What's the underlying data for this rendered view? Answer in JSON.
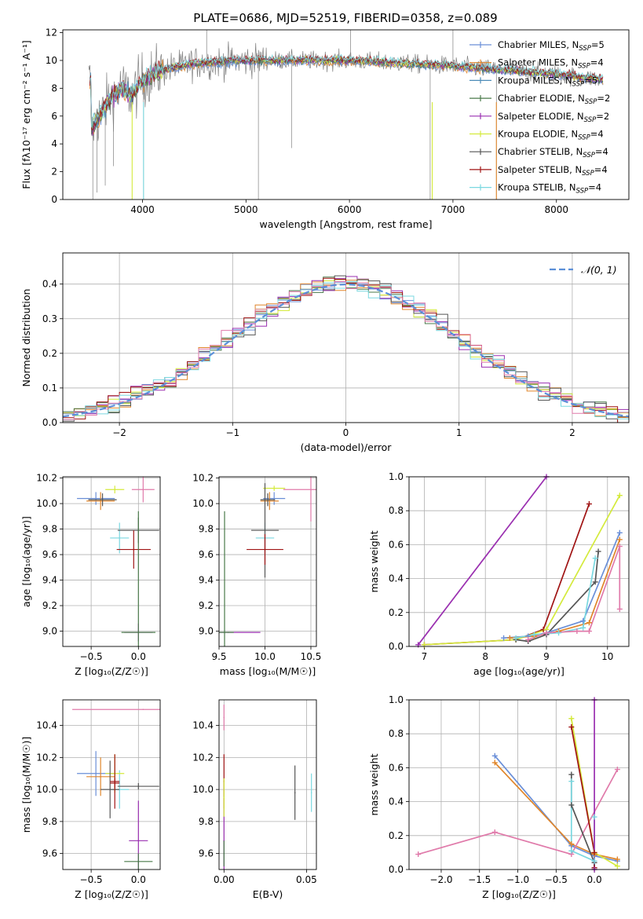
{
  "figure_title": "PLATE=0686, MJD=52519, FIBERID=0358, z=0.089",
  "colors": {
    "chab_miles": "#6a8fd8",
    "salp_miles": "#e0862b",
    "krou_miles": "#4c8cb8",
    "chab_elodie": "#4a7a4a",
    "salp_elodie": "#9a2fb0",
    "krou_elodie": "#d4ea3c",
    "chab_stelib": "#555555",
    "salp_stelib": "#a01414",
    "krou_stelib": "#7ad8e0",
    "pink": "#e07aaa",
    "normal": "#5b8fd8"
  },
  "chart_data": [
    {
      "id": "spectrum",
      "type": "line",
      "title": "PLATE=0686, MJD=52519, FIBERID=0358, z=0.089",
      "xlabel": "wavelength [Angstrom, rest frame]",
      "ylabel": "Flux [fλ10⁻¹⁷ erg cm⁻² s⁻¹ A⁻¹]",
      "xlim": [
        3230,
        8700
      ],
      "ylim": [
        0,
        12.2
      ],
      "xticks": [
        4000,
        5000,
        6000,
        7000,
        8000
      ],
      "yticks": [
        0,
        2,
        4,
        6,
        8,
        10,
        12
      ],
      "grid": false,
      "legend_position": "top-right",
      "legend": [
        {
          "label": "Chabrier MILES, N",
          "sub": "SSP",
          "suffix": "=5",
          "color": "#6a8fd8"
        },
        {
          "label": "Salpeter MILES, N",
          "sub": "SSP",
          "suffix": "=4",
          "color": "#e0862b"
        },
        {
          "label": "Kroupa MILES, N",
          "sub": "SSP",
          "suffix": "=5",
          "color": "#4c8cb8"
        },
        {
          "label": "Chabrier ELODIE, N",
          "sub": "SSP",
          "suffix": "=2",
          "color": "#4a7a4a"
        },
        {
          "label": "Salpeter ELODIE, N",
          "sub": "SSP",
          "suffix": "=2",
          "color": "#9a2fb0"
        },
        {
          "label": "Kroupa ELODIE, N",
          "sub": "SSP",
          "suffix": "=4",
          "color": "#d4ea3c"
        },
        {
          "label": "Chabrier STELIB, N",
          "sub": "SSP",
          "suffix": "=4",
          "color": "#555555"
        },
        {
          "label": "Salpeter STELIB, N",
          "sub": "SSP",
          "suffix": "=4",
          "color": "#a01414"
        },
        {
          "label": "Kroupa STELIB, N",
          "sub": "SSP",
          "suffix": "=4",
          "color": "#7ad8e0"
        }
      ],
      "continuum": [
        {
          "x": 3500,
          "y": 5.0
        },
        {
          "x": 3600,
          "y": 6.2
        },
        {
          "x": 3700,
          "y": 7.4
        },
        {
          "x": 3800,
          "y": 8.0
        },
        {
          "x": 3900,
          "y": 7.5
        },
        {
          "x": 4000,
          "y": 8.6
        },
        {
          "x": 4200,
          "y": 9.3
        },
        {
          "x": 4500,
          "y": 9.8
        },
        {
          "x": 5000,
          "y": 10.0
        },
        {
          "x": 5500,
          "y": 10.0
        },
        {
          "x": 6000,
          "y": 10.0
        },
        {
          "x": 6500,
          "y": 9.8
        },
        {
          "x": 7000,
          "y": 9.6
        },
        {
          "x": 7500,
          "y": 9.3
        },
        {
          "x": 8000,
          "y": 9.0
        },
        {
          "x": 8450,
          "y": 8.6
        }
      ]
    },
    {
      "id": "residuals",
      "type": "histogram",
      "xlabel": "(data-model)/error",
      "ylabel": "Normed distribution",
      "xlim": [
        -2.5,
        2.5
      ],
      "ylim": [
        0,
        0.49
      ],
      "xticks": [
        -2,
        -1,
        0,
        1,
        2
      ],
      "yticks": [
        0.0,
        0.1,
        0.2,
        0.3,
        0.4
      ],
      "grid": true,
      "legend_position": "top-right",
      "legend_label": "𝒩(0, 1)",
      "bin_width": 0.1
    },
    {
      "id": "age_vs_Z",
      "type": "errorbar",
      "xlabel": "Z [log₁₀(Z/Z☉)]",
      "ylabel": "age  [log₁₀(age/yr)]",
      "xlim": [
        -0.8,
        0.23
      ],
      "ylim": [
        8.88,
        10.21
      ],
      "xticks": [
        -0.5,
        0.0
      ],
      "yticks": [
        9.0,
        9.2,
        9.4,
        9.6,
        9.8,
        10.0,
        10.2
      ],
      "grid": true,
      "points": [
        {
          "x": -0.45,
          "y": 10.04,
          "xerr": 0.2,
          "yerr": 0.05,
          "color": "#6a8fd8"
        },
        {
          "x": -0.4,
          "y": 10.02,
          "xerr": 0.15,
          "yerr": 0.07,
          "color": "#e0862b"
        },
        {
          "x": -0.38,
          "y": 10.03,
          "xerr": 0.15,
          "yerr": 0.05,
          "color": "#555555"
        },
        {
          "x": -0.2,
          "y": 9.73,
          "xerr": 0.1,
          "yerr": 0.12,
          "color": "#7ad8e0"
        },
        {
          "x": -0.25,
          "y": 10.11,
          "xerr": 0.1,
          "yerr": 0.03,
          "color": "#d4ea3c"
        },
        {
          "x": 0.05,
          "y": 10.11,
          "xerr": 0.12,
          "yerr": 0.1,
          "color": "#e07aaa"
        },
        {
          "x": 0.0,
          "y": 9.79,
          "xerr": 0.22,
          "yerr": 0.1,
          "color": "#555555"
        },
        {
          "x": -0.05,
          "y": 9.64,
          "xerr": 0.18,
          "yerr": 0.15,
          "color": "#a01414"
        },
        {
          "x": 0.0,
          "y": 8.99,
          "xerr": 0.15,
          "yerr": 0.07,
          "color": "#9a2fb0"
        },
        {
          "x": 0.0,
          "y": 8.99,
          "xerr": 0.18,
          "yerr": 0.95,
          "color": "#4a7a4a"
        }
      ]
    },
    {
      "id": "age_vs_mass",
      "type": "errorbar",
      "xlabel": "mass [log₁₀(M/M☉)]",
      "xlim": [
        9.5,
        10.56
      ],
      "ylim": [
        8.88,
        10.21
      ],
      "xticks": [
        9.5,
        10.0,
        10.5
      ],
      "yticks": [
        9.0,
        9.2,
        9.4,
        9.6,
        9.8,
        10.0,
        10.2
      ],
      "grid": true,
      "points": [
        {
          "x": 10.1,
          "y": 10.04,
          "xerr": 0.12,
          "yerr": 0.05,
          "color": "#6a8fd8"
        },
        {
          "x": 10.05,
          "y": 10.02,
          "xerr": 0.1,
          "yerr": 0.07,
          "color": "#e0862b"
        },
        {
          "x": 10.03,
          "y": 10.03,
          "xerr": 0.08,
          "yerr": 0.05,
          "color": "#555555"
        },
        {
          "x": 10.0,
          "y": 9.73,
          "xerr": 0.1,
          "yerr": 0.12,
          "color": "#7ad8e0"
        },
        {
          "x": 10.1,
          "y": 10.12,
          "xerr": 0.12,
          "yerr": 0.02,
          "color": "#d4ea3c"
        },
        {
          "x": 10.5,
          "y": 10.11,
          "xerr": 0.3,
          "yerr": 0.25,
          "color": "#e07aaa"
        },
        {
          "x": 10.0,
          "y": 9.79,
          "xerr": 0.15,
          "yerr": 0.37,
          "color": "#555555"
        },
        {
          "x": 10.0,
          "y": 9.64,
          "xerr": 0.2,
          "yerr": 0.12,
          "color": "#a01414"
        },
        {
          "x": 9.6,
          "y": 8.99,
          "xerr": 0.35,
          "yerr": 0.0,
          "color": "#9a2fb0"
        },
        {
          "x": 9.56,
          "y": 8.99,
          "xerr": 0.1,
          "yerr": 0.95,
          "color": "#4a7a4a"
        }
      ]
    },
    {
      "id": "weight_vs_age",
      "type": "line",
      "xlabel": "age  [log₁₀(age/yr)]",
      "ylabel": "mass weight",
      "xlim": [
        6.75,
        10.35
      ],
      "ylim": [
        0,
        1.0
      ],
      "xticks": [
        7,
        8,
        9,
        10
      ],
      "yticks": [
        0.0,
        0.2,
        0.4,
        0.6,
        0.8,
        1.0
      ],
      "grid": true,
      "series": [
        {
          "color": "#9a2fb0",
          "x": [
            6.9,
            9.0
          ],
          "y": [
            0.01,
            1.0
          ]
        },
        {
          "color": "#a01414",
          "x": [
            7.0,
            8.5,
            8.95,
            9.7
          ],
          "y": [
            0.01,
            0.04,
            0.1,
            0.84
          ]
        },
        {
          "color": "#d4ea3c",
          "x": [
            7.0,
            8.5,
            9.0,
            10.2
          ],
          "y": [
            0.01,
            0.04,
            0.1,
            0.89
          ]
        },
        {
          "color": "#555555",
          "x": [
            8.5,
            8.7,
            9.0,
            9.8,
            9.85
          ],
          "y": [
            0.04,
            0.03,
            0.07,
            0.38,
            0.56
          ]
        },
        {
          "color": "#6a8fd8",
          "x": [
            8.3,
            8.7,
            9.0,
            9.6,
            10.2
          ],
          "y": [
            0.05,
            0.06,
            0.08,
            0.15,
            0.67
          ]
        },
        {
          "color": "#e0862b",
          "x": [
            8.4,
            8.8,
            9.2,
            9.7,
            10.2
          ],
          "y": [
            0.05,
            0.06,
            0.09,
            0.14,
            0.63
          ]
        },
        {
          "color": "#7ad8e0",
          "x": [
            8.5,
            8.8,
            9.2,
            9.6,
            9.8
          ],
          "y": [
            0.05,
            0.07,
            0.08,
            0.11,
            0.52
          ]
        },
        {
          "color": "#e07aaa",
          "x": [
            8.7,
            9.0,
            9.5,
            9.7,
            10.2,
            10.2
          ],
          "y": [
            0.04,
            0.08,
            0.09,
            0.09,
            0.59,
            0.22
          ]
        }
      ]
    },
    {
      "id": "mass_vs_Z",
      "type": "errorbar",
      "xlabel": "Z [log₁₀(Z/Z☉)]",
      "ylabel": "mass [log₁₀(M/M☉)]",
      "xlim": [
        -0.8,
        0.23
      ],
      "ylim": [
        9.5,
        10.56
      ],
      "xticks": [
        -0.5,
        0.0
      ],
      "yticks": [
        9.6,
        9.8,
        10.0,
        10.2,
        10.4
      ],
      "grid": true,
      "points": [
        {
          "x": -0.45,
          "y": 10.1,
          "xerr": 0.2,
          "yerr": 0.14,
          "color": "#6a8fd8"
        },
        {
          "x": -0.4,
          "y": 10.08,
          "xerr": 0.15,
          "yerr": 0.12,
          "color": "#e0862b"
        },
        {
          "x": -0.2,
          "y": 10.0,
          "xerr": 0.1,
          "yerr": 0.12,
          "color": "#7ad8e0"
        },
        {
          "x": -0.25,
          "y": 10.1,
          "xerr": 0.1,
          "yerr": 0.12,
          "color": "#d4ea3c"
        },
        {
          "x": -0.3,
          "y": 10.0,
          "xerr": 0.1,
          "yerr": 0.18,
          "color": "#555555"
        },
        {
          "x": -0.25,
          "y": 10.05,
          "xerr": 0.05,
          "yerr": 0.17,
          "color": "#a01414"
        },
        {
          "x": 0.0,
          "y": 10.02,
          "xerr": 0.22,
          "yerr": 0.02,
          "color": "#555555"
        },
        {
          "x": -0.25,
          "y": 10.04,
          "xerr": 0.05,
          "yerr": 0.03,
          "color": "#a01414"
        },
        {
          "x": 0.05,
          "y": 10.5,
          "xerr": 0.75,
          "yerr": 0.0,
          "color": "#e07aaa"
        },
        {
          "x": 0.0,
          "y": 9.68,
          "xerr": 0.1,
          "yerr": 0.25,
          "color": "#9a2fb0"
        },
        {
          "x": 0.0,
          "y": 9.55,
          "xerr": 0.15,
          "yerr": 0.05,
          "color": "#4a7a4a"
        }
      ]
    },
    {
      "id": "mass_vs_ebv",
      "type": "errorbar",
      "xlabel": "E(B-V)",
      "xlim": [
        -0.003,
        0.056
      ],
      "ylim": [
        9.5,
        10.56
      ],
      "xticks": [
        0.0,
        0.05
      ],
      "yticks": [
        9.6,
        9.8,
        10.0,
        10.2,
        10.4
      ],
      "grid": true,
      "points": [
        {
          "x": 0.0,
          "y": 10.45,
          "xerr": 0.0,
          "yerr": 0.08,
          "color": "#e07aaa"
        },
        {
          "x": 0.0,
          "y": 10.05,
          "xerr": 0.0,
          "yerr": 0.17,
          "color": "#a01414"
        },
        {
          "x": 0.0,
          "y": 9.68,
          "xerr": 0.0,
          "yerr": 0.2,
          "color": "#9a2fb0"
        },
        {
          "x": 0.0,
          "y": 9.95,
          "xerr": 0.0,
          "yerr": 0.12,
          "color": "#d4ea3c"
        },
        {
          "x": 0.0,
          "y": 9.6,
          "xerr": 0.0,
          "yerr": 0.08,
          "color": "#4a7a4a"
        },
        {
          "x": 0.043,
          "y": 9.98,
          "xerr": 0.0,
          "yerr": 0.17,
          "color": "#555555"
        },
        {
          "x": 0.053,
          "y": 9.98,
          "xerr": 0.0,
          "yerr": 0.12,
          "color": "#7ad8e0"
        }
      ]
    },
    {
      "id": "weight_vs_Z",
      "type": "line",
      "xlabel": "Z [log₁₀(Z/Z☉)]",
      "ylabel": "mass weight",
      "xlim": [
        -2.42,
        0.45
      ],
      "ylim": [
        0,
        1.0
      ],
      "xticks": [
        -2.0,
        -1.5,
        -1.0,
        -0.5,
        0.0
      ],
      "yticks": [
        0.0,
        0.2,
        0.4,
        0.6,
        0.8,
        1.0
      ],
      "grid": true,
      "series": [
        {
          "color": "#6a8fd8",
          "x": [
            -1.3,
            -0.3,
            0.0,
            0.3
          ],
          "y": [
            0.67,
            0.14,
            0.08,
            0.05
          ]
        },
        {
          "color": "#e0862b",
          "x": [
            -1.3,
            -0.3,
            0.0,
            0.3
          ],
          "y": [
            0.63,
            0.15,
            0.09,
            0.06
          ]
        },
        {
          "color": "#e07aaa",
          "x": [
            -2.3,
            -1.3,
            -0.3,
            0.3
          ],
          "y": [
            0.09,
            0.22,
            0.09,
            0.59
          ]
        },
        {
          "color": "#555555",
          "x": [
            -0.3,
            -0.3,
            0.0,
            0.0
          ],
          "y": [
            0.56,
            0.38,
            0.04,
            0.01
          ]
        },
        {
          "color": "#d4ea3c",
          "x": [
            -0.3,
            0.0,
            0.3
          ],
          "y": [
            0.89,
            0.1,
            0.02
          ]
        },
        {
          "color": "#a01414",
          "x": [
            -0.3,
            0.0,
            0.0
          ],
          "y": [
            0.84,
            0.1,
            0.01
          ]
        },
        {
          "color": "#7ad8e0",
          "x": [
            -0.3,
            -0.3,
            0.0,
            0.0
          ],
          "y": [
            0.52,
            0.11,
            0.05,
            0.31
          ]
        },
        {
          "color": "#9a2fb0",
          "x": [
            0.0,
            0.0
          ],
          "y": [
            1.0,
            0.0
          ]
        }
      ]
    }
  ]
}
